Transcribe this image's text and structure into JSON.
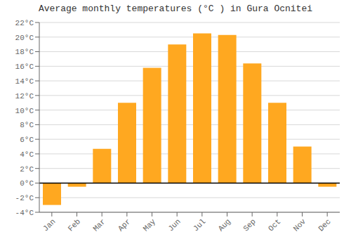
{
  "chart_data": {
    "type": "bar",
    "title": "Average monthly temperatures (°C ) in Gura Ocnitei",
    "categories": [
      "Jan",
      "Feb",
      "Mar",
      "Apr",
      "May",
      "Jun",
      "Jul",
      "Aug",
      "Sep",
      "Oct",
      "Nov",
      "Dec"
    ],
    "values": [
      -3.0,
      -0.5,
      4.7,
      11.0,
      15.8,
      19.0,
      20.5,
      20.3,
      16.4,
      11.0,
      5.0,
      -0.5
    ],
    "color": "#FFA820",
    "ylim": [
      -4,
      22
    ],
    "yticks": [
      {
        "value": -4,
        "label": "-4°C"
      },
      {
        "value": -2,
        "label": "-2°C"
      },
      {
        "value": 0,
        "label": "0°C"
      },
      {
        "value": 2,
        "label": "2°C"
      },
      {
        "value": 4,
        "label": "4°C"
      },
      {
        "value": 6,
        "label": "6°C"
      },
      {
        "value": 8,
        "label": "8°C"
      },
      {
        "value": 10,
        "label": "10°C"
      },
      {
        "value": 12,
        "label": "12°C"
      },
      {
        "value": 14,
        "label": "14°C"
      },
      {
        "value": 16,
        "label": "16°C"
      },
      {
        "value": 18,
        "label": "18°C"
      },
      {
        "value": 20,
        "label": "20°C"
      },
      {
        "value": 22,
        "label": "22°C"
      }
    ],
    "grid": true
  }
}
